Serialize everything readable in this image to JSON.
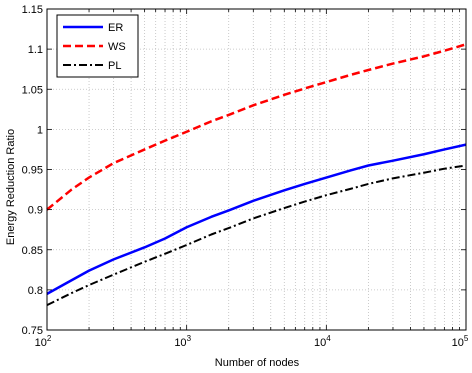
{
  "chart_data": {
    "type": "line",
    "title": "",
    "xlabel": "Number of nodes",
    "ylabel": "Energy Reduction Ratio",
    "xscale": "log",
    "xlim": [
      100,
      100000
    ],
    "ylim": [
      0.75,
      1.15
    ],
    "grid": true,
    "legend_position": "top-left",
    "xticks": [
      {
        "value": 100,
        "base": "10",
        "exp": "2"
      },
      {
        "value": 1000,
        "base": "10",
        "exp": "3"
      },
      {
        "value": 10000,
        "base": "10",
        "exp": "4"
      },
      {
        "value": 100000,
        "base": "10",
        "exp": "5"
      }
    ],
    "yticks": [
      {
        "value": 0.75,
        "label": "0.75"
      },
      {
        "value": 0.8,
        "label": "0.8"
      },
      {
        "value": 0.85,
        "label": "0.85"
      },
      {
        "value": 0.9,
        "label": "0.9"
      },
      {
        "value": 0.95,
        "label": "0.95"
      },
      {
        "value": 1.0,
        "label": "1"
      },
      {
        "value": 1.05,
        "label": "1.05"
      },
      {
        "value": 1.1,
        "label": "1.1"
      },
      {
        "value": 1.15,
        "label": "1.15"
      }
    ],
    "x": [
      100,
      150,
      200,
      300,
      500,
      700,
      1000,
      1500,
      2000,
      3000,
      5000,
      7000,
      10000,
      15000,
      20000,
      30000,
      50000,
      70000,
      100000
    ],
    "series": [
      {
        "name": "ER",
        "color": "#0000ff",
        "dash": "solid",
        "values": [
          0.795,
          0.812,
          0.824,
          0.838,
          0.853,
          0.864,
          0.878,
          0.891,
          0.899,
          0.911,
          0.924,
          0.932,
          0.94,
          0.949,
          0.955,
          0.961,
          0.969,
          0.975,
          0.981
        ]
      },
      {
        "name": "WS",
        "color": "#ff0000",
        "dash": "dashed",
        "values": [
          0.9,
          0.925,
          0.94,
          0.958,
          0.975,
          0.986,
          0.997,
          1.01,
          1.018,
          1.03,
          1.043,
          1.051,
          1.059,
          1.068,
          1.074,
          1.082,
          1.091,
          1.098,
          1.106
        ]
      },
      {
        "name": "PL",
        "color": "#000000",
        "dash": "dashdot",
        "values": [
          0.781,
          0.796,
          0.806,
          0.819,
          0.835,
          0.845,
          0.856,
          0.869,
          0.877,
          0.889,
          0.902,
          0.91,
          0.918,
          0.926,
          0.932,
          0.939,
          0.946,
          0.951,
          0.955
        ]
      }
    ]
  }
}
